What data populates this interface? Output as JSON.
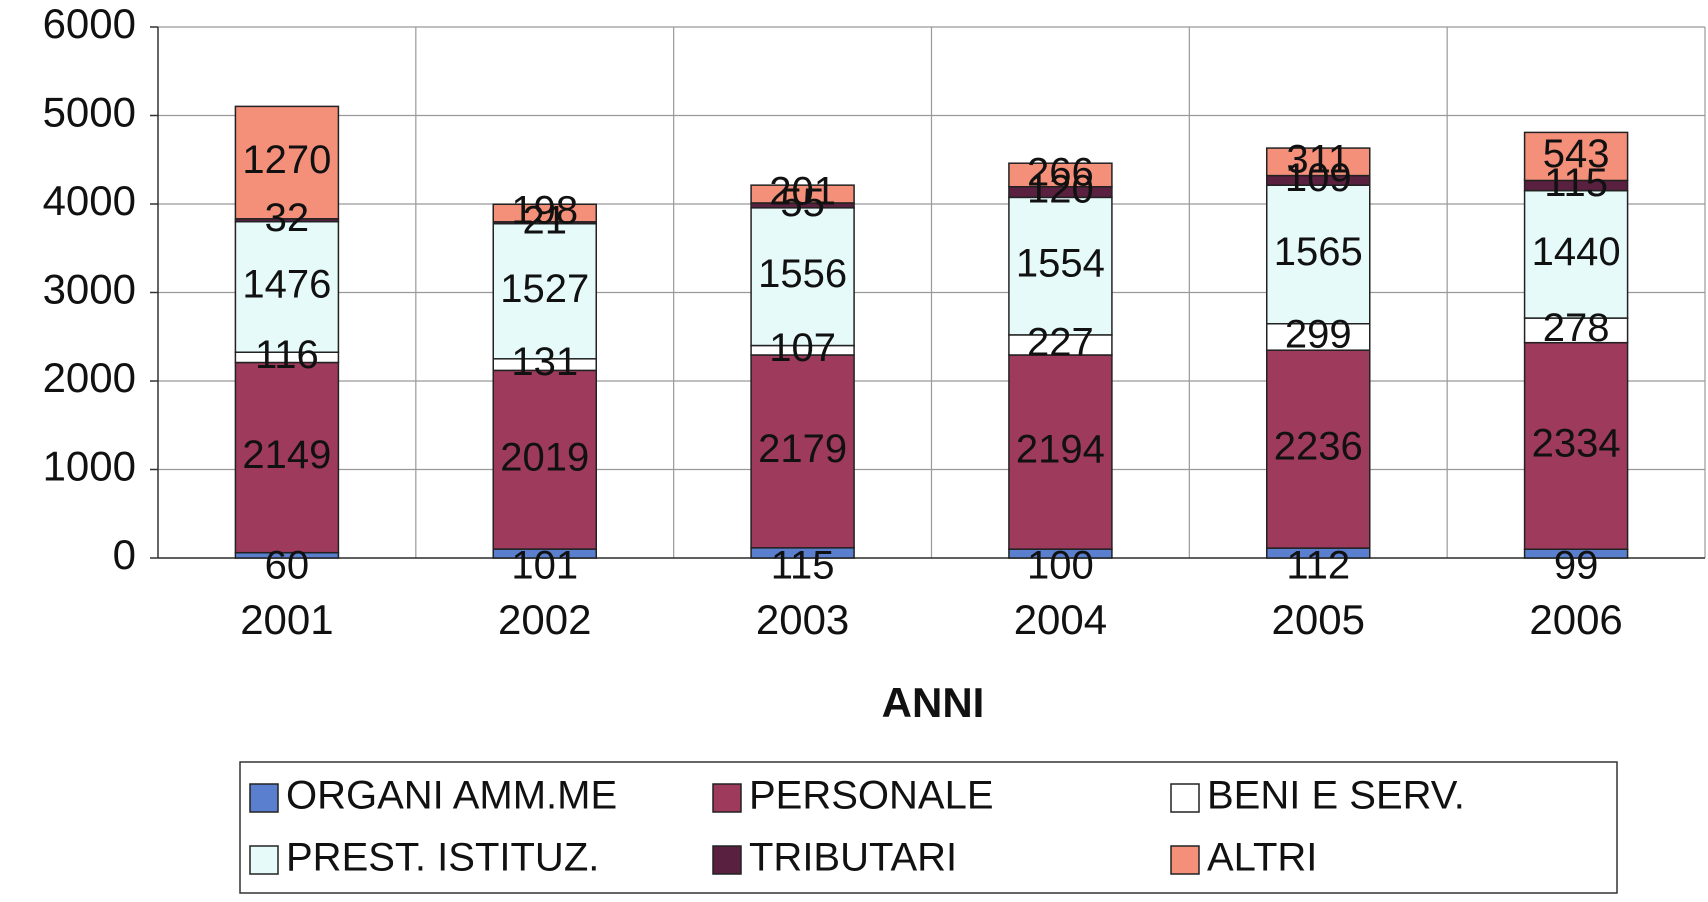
{
  "chart_data": {
    "type": "stacked_bar",
    "xlabel": "ANNI",
    "categories": [
      "2001",
      "2002",
      "2003",
      "2004",
      "2005",
      "2006"
    ],
    "series": [
      {
        "name": "ORGANI AMM.ME",
        "color": "#5b7fcf",
        "values": [
          60,
          101,
          115,
          100,
          112,
          99
        ]
      },
      {
        "name": "PERSONALE",
        "color": "#9e3a5c",
        "values": [
          2149,
          2019,
          2179,
          2194,
          2236,
          2334
        ]
      },
      {
        "name": "BENI E SERV.",
        "color": "#ffffff",
        "values": [
          116,
          131,
          107,
          227,
          299,
          278
        ]
      },
      {
        "name": "PREST. ISTITUZ.",
        "color": "#e6fafa",
        "values": [
          1476,
          1527,
          1556,
          1554,
          1565,
          1440
        ]
      },
      {
        "name": "TRIBUTARI",
        "color": "#5a2040",
        "values": [
          32,
          21,
          55,
          120,
          109,
          115
        ]
      },
      {
        "name": "ALTRI",
        "color": "#f4907a",
        "values": [
          1270,
          198,
          201,
          266,
          311,
          543
        ]
      }
    ],
    "ylim": [
      0,
      6000
    ],
    "yticks": [
      0,
      1000,
      2000,
      3000,
      4000,
      5000,
      6000
    ],
    "grid": true
  }
}
